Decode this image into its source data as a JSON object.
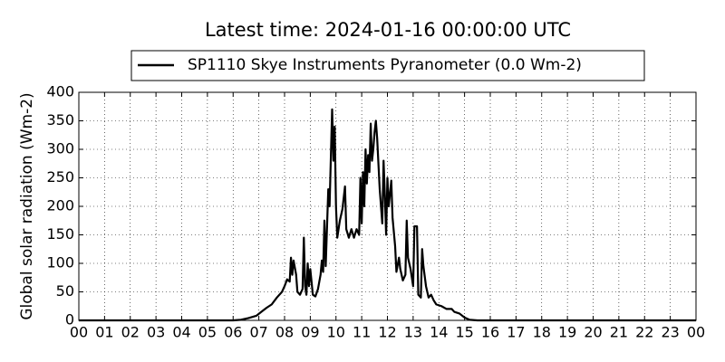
{
  "chart_data": {
    "type": "line",
    "title": "Latest time: 2024-01-16 00:00:00 UTC",
    "y_label": "Global solar radiation (Wm-2)",
    "grid": true,
    "xlim": [
      0,
      24
    ],
    "ylim": [
      0,
      400
    ],
    "yticks": [
      0,
      50,
      100,
      150,
      200,
      250,
      300,
      350,
      400
    ],
    "xticks": [
      {
        "value": 0,
        "label": "00"
      },
      {
        "value": 1,
        "label": "01"
      },
      {
        "value": 2,
        "label": "02"
      },
      {
        "value": 3,
        "label": "03"
      },
      {
        "value": 4,
        "label": "04"
      },
      {
        "value": 5,
        "label": "05"
      },
      {
        "value": 6,
        "label": "06"
      },
      {
        "value": 7,
        "label": "07"
      },
      {
        "value": 8,
        "label": "08"
      },
      {
        "value": 9,
        "label": "09"
      },
      {
        "value": 10,
        "label": "10"
      },
      {
        "value": 11,
        "label": "11"
      },
      {
        "value": 12,
        "label": "12"
      },
      {
        "value": 13,
        "label": "13"
      },
      {
        "value": 14,
        "label": "14"
      },
      {
        "value": 15,
        "label": "15"
      },
      {
        "value": 16,
        "label": "16"
      },
      {
        "value": 17,
        "label": "17"
      },
      {
        "value": 18,
        "label": "18"
      },
      {
        "value": 19,
        "label": "19"
      },
      {
        "value": 20,
        "label": "20"
      },
      {
        "value": 21,
        "label": "21"
      },
      {
        "value": 22,
        "label": "22"
      },
      {
        "value": 23,
        "label": "23"
      },
      {
        "value": 24,
        "label": "00"
      }
    ],
    "x": [
      0,
      6.0,
      6.3,
      6.6,
      6.9,
      7.1,
      7.3,
      7.5,
      7.7,
      7.9,
      8.0,
      8.1,
      8.2,
      8.25,
      8.3,
      8.35,
      8.45,
      8.5,
      8.6,
      8.7,
      8.75,
      8.8,
      8.85,
      8.9,
      8.95,
      9.0,
      9.1,
      9.2,
      9.3,
      9.4,
      9.45,
      9.5,
      9.55,
      9.6,
      9.7,
      9.75,
      9.85,
      9.9,
      9.95,
      10.0,
      10.05,
      10.15,
      10.25,
      10.35,
      10.4,
      10.5,
      10.6,
      10.7,
      10.8,
      10.9,
      10.95,
      11.0,
      11.05,
      11.1,
      11.15,
      11.2,
      11.25,
      11.3,
      11.35,
      11.4,
      11.45,
      11.5,
      11.55,
      11.6,
      11.7,
      11.8,
      11.85,
      11.9,
      11.95,
      12.0,
      12.05,
      12.15,
      12.2,
      12.3,
      12.35,
      12.45,
      12.5,
      12.6,
      12.7,
      12.75,
      12.8,
      12.9,
      13.0,
      13.05,
      13.15,
      13.2,
      13.3,
      13.35,
      13.4,
      13.5,
      13.6,
      13.7,
      13.8,
      13.9,
      14.1,
      14.3,
      14.5,
      14.6,
      14.8,
      15.0,
      15.2,
      15.5,
      24
    ],
    "series": [
      {
        "name": "SP1110 Skye Instruments Pyranometer (0.0 Wm-2)",
        "color": "#000000",
        "values": [
          0,
          0,
          1,
          4,
          8,
          15,
          22,
          28,
          40,
          50,
          60,
          72,
          68,
          110,
          80,
          105,
          80,
          50,
          45,
          55,
          145,
          60,
          45,
          100,
          60,
          90,
          45,
          42,
          55,
          80,
          105,
          85,
          175,
          95,
          230,
          200,
          370,
          280,
          340,
          200,
          145,
          175,
          195,
          235,
          160,
          145,
          160,
          145,
          160,
          150,
          250,
          170,
          260,
          200,
          300,
          240,
          290,
          260,
          345,
          280,
          300,
          330,
          350,
          320,
          230,
          170,
          280,
          220,
          150,
          250,
          200,
          245,
          180,
          130,
          85,
          110,
          90,
          70,
          80,
          175,
          110,
          90,
          60,
          165,
          165,
          45,
          40,
          125,
          95,
          60,
          40,
          45,
          35,
          28,
          25,
          20,
          20,
          15,
          12,
          5,
          1,
          0,
          0
        ]
      }
    ]
  }
}
